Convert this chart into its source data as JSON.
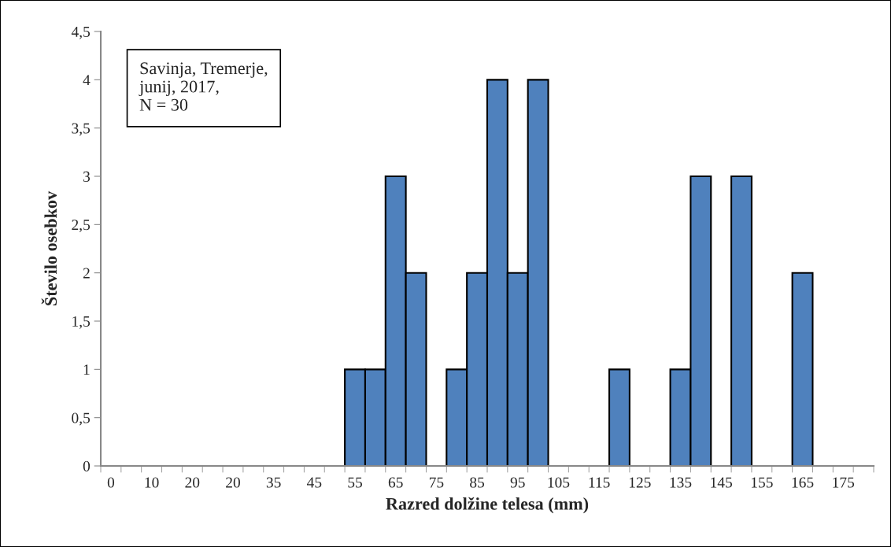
{
  "chart_data": {
    "type": "bar",
    "categories": [
      "0",
      null,
      "10",
      null,
      "20",
      null,
      "20",
      null,
      "35",
      null,
      "45",
      null,
      "55",
      null,
      "65",
      null,
      "75",
      null,
      "85",
      null,
      "95",
      null,
      "105",
      null,
      "115",
      null,
      "125",
      null,
      "135",
      null,
      "145",
      null,
      "155",
      null,
      "165",
      null,
      "175",
      null
    ],
    "values": [
      0,
      0,
      0,
      0,
      0,
      0,
      0,
      0,
      0,
      0,
      0,
      0,
      1,
      1,
      3,
      2,
      0,
      1,
      2,
      4,
      2,
      4,
      0,
      0,
      0,
      1,
      0,
      0,
      1,
      3,
      0,
      3,
      0,
      0,
      2,
      0,
      0,
      0
    ],
    "color": "#4f81bd",
    "xlabel": "Razred dolžine telesa (mm)",
    "ylabel": "Število osebkov",
    "ylim": [
      0,
      4.5
    ],
    "yticks": [
      0,
      {
        "value": 0.5,
        "label": "0,5"
      },
      1,
      {
        "value": 1.5,
        "label": "1,5"
      },
      2,
      {
        "value": 2.5,
        "label": "2,5"
      },
      3,
      {
        "value": 3.5,
        "label": "3,5"
      },
      4,
      {
        "value": 4.5,
        "label": "4,5"
      }
    ],
    "annotations": [
      "Savinja, Tremerje,\njunij, 2017,\nN = 30"
    ],
    "grid": false,
    "legend": false
  }
}
